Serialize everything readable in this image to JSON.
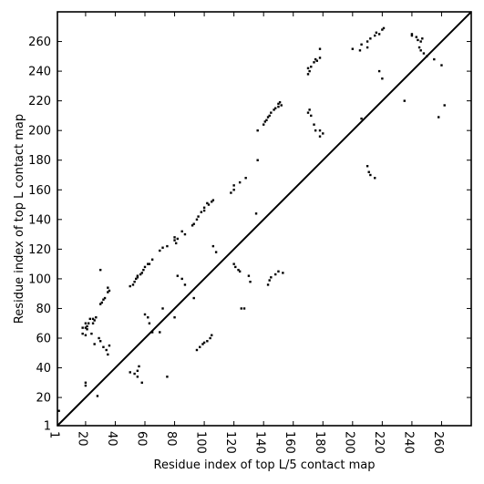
{
  "chart_data": {
    "type": "scatter",
    "xlabel": "Residue index of top L/5 contact map",
    "ylabel": "Residue index of top L contact map",
    "xlim": [
      1,
      280
    ],
    "ylim": [
      1,
      280
    ],
    "x_ticks": [
      1,
      20,
      40,
      60,
      80,
      100,
      120,
      140,
      160,
      180,
      200,
      220,
      240,
      260
    ],
    "y_ticks": [
      1,
      20,
      40,
      60,
      80,
      100,
      120,
      140,
      160,
      180,
      200,
      220,
      240,
      260
    ],
    "x_tick_labels": [
      "1",
      "20",
      "40",
      "60",
      "80",
      "100",
      "120",
      "140",
      "160",
      "180",
      "200",
      "220",
      "240",
      "260"
    ],
    "y_tick_labels": [
      "1",
      "20",
      "40",
      "60",
      "80",
      "100",
      "120",
      "140",
      "160",
      "180",
      "200",
      "220",
      "240",
      "260"
    ],
    "diagonal": {
      "from": [
        1,
        1
      ],
      "to": [
        280,
        280
      ]
    },
    "grid": false,
    "point_color": "#000000",
    "series": [
      {
        "region": "upper-left",
        "x": [
          2,
          18,
          20,
          20,
          21,
          22,
          23,
          25,
          25,
          26,
          27,
          30,
          30,
          31,
          32,
          33,
          35,
          35,
          36,
          50,
          52,
          53,
          54,
          55,
          55,
          57,
          58,
          59,
          60,
          62,
          63,
          65,
          70,
          72,
          75,
          80,
          80,
          81,
          82,
          85,
          87,
          92,
          93,
          95,
          96,
          98,
          100,
          100,
          102,
          103,
          105,
          106,
          118,
          120,
          120,
          124,
          128,
          135,
          136,
          136,
          140,
          141,
          142,
          143,
          144,
          145,
          147,
          148,
          150,
          150,
          151,
          152,
          170,
          170,
          171,
          172,
          174,
          175,
          176,
          178,
          178,
          200,
          205,
          206,
          210,
          210,
          212,
          215,
          216,
          218,
          220,
          221,
          240,
          243,
          244,
          246,
          247
        ],
        "y": [
          11,
          67,
          67,
          70,
          68,
          70,
          73,
          70,
          73,
          72,
          74,
          83,
          106,
          84,
          86,
          87,
          91,
          94,
          92,
          95,
          96,
          98,
          100,
          101,
          102,
          103,
          104,
          106,
          108,
          110,
          110,
          113,
          119,
          121,
          122,
          126,
          128,
          124,
          127,
          132,
          130,
          136,
          137,
          140,
          142,
          145,
          146,
          148,
          151,
          150,
          152,
          153,
          158,
          160,
          163,
          165,
          168,
          144,
          180,
          200,
          204,
          206,
          207,
          209,
          210,
          212,
          214,
          215,
          216,
          218,
          219,
          217,
          238,
          242,
          240,
          243,
          246,
          248,
          247,
          249,
          255,
          255,
          254,
          258,
          256,
          260,
          262,
          264,
          266,
          265,
          268,
          269,
          265,
          263,
          261,
          260,
          262
        ]
      },
      {
        "region": "lower-right",
        "x": [
          18,
          20,
          20,
          20,
          21,
          24,
          26,
          28,
          29,
          30,
          32,
          34,
          35,
          36,
          50,
          53,
          55,
          55,
          56,
          58,
          60,
          62,
          63,
          65,
          70,
          72,
          75,
          80,
          82,
          85,
          87,
          93,
          95,
          97,
          99,
          100,
          102,
          104,
          105,
          106,
          108,
          120,
          121,
          123,
          124,
          125,
          127,
          130,
          131,
          143,
          144,
          145,
          148,
          150,
          153,
          170,
          171,
          172,
          174,
          175,
          178,
          178,
          180,
          206,
          210,
          211,
          212,
          215,
          218,
          220,
          235,
          240,
          245,
          246,
          248,
          250,
          255,
          258,
          260,
          262
        ],
        "y": [
          63,
          28,
          30,
          62,
          66,
          63,
          56,
          21,
          60,
          58,
          54,
          52,
          49,
          55,
          37,
          36,
          34,
          38,
          41,
          30,
          76,
          74,
          70,
          64,
          64,
          80,
          34,
          74,
          102,
          100,
          96,
          87,
          52,
          54,
          56,
          57,
          58,
          60,
          62,
          122,
          118,
          110,
          108,
          106,
          105,
          80,
          80,
          102,
          98,
          96,
          99,
          101,
          103,
          105,
          104,
          212,
          214,
          210,
          204,
          200,
          196,
          200,
          198,
          208,
          176,
          172,
          170,
          168,
          240,
          235,
          220,
          264,
          256,
          254,
          252,
          250,
          248,
          209,
          244,
          217
        ]
      }
    ]
  }
}
